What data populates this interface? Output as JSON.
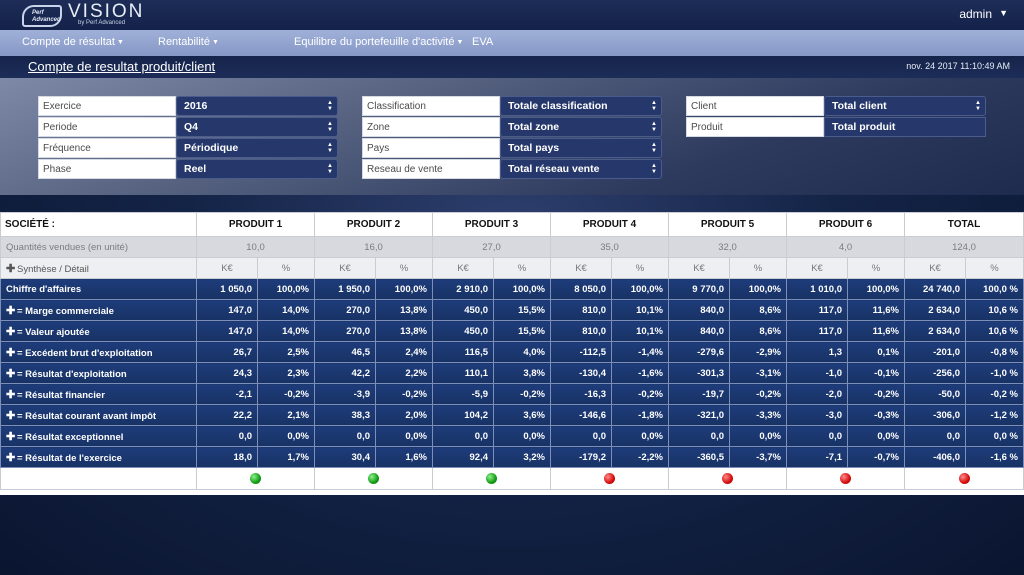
{
  "header": {
    "logo_badge_line1": "Perf",
    "logo_badge_line2": "Advanced",
    "app_name": "VISION",
    "app_sub": "by Perf Advanced",
    "user": "admin"
  },
  "nav": [
    {
      "label": "Compte de résultat",
      "dropdown": true
    },
    {
      "label": "Rentabilité",
      "dropdown": true
    },
    {
      "label": "Equilibre du portefeuille d'activité",
      "dropdown": true
    },
    {
      "label": "EVA",
      "dropdown": false
    }
  ],
  "page": {
    "title": "Compte de resultat produit/client",
    "timestamp": "nov. 24 2017 11:10:49 AM"
  },
  "filters": {
    "col1": [
      {
        "label": "Exercice",
        "value": "2016"
      },
      {
        "label": "Periode",
        "value": "Q4"
      },
      {
        "label": "Fréquence",
        "value": "Périodique"
      },
      {
        "label": "Phase",
        "value": "Reel"
      }
    ],
    "col2": [
      {
        "label": "Classification",
        "value": "Totale classification"
      },
      {
        "label": "Zone",
        "value": "Total zone"
      },
      {
        "label": "Pays",
        "value": "Total pays"
      },
      {
        "label": "Reseau de vente",
        "value": "Total réseau vente"
      }
    ],
    "col3": [
      {
        "label": "Client",
        "value": "Total client"
      },
      {
        "label": "Produit",
        "value": "Total produit"
      }
    ]
  },
  "table": {
    "corner_label": "SOCIÉTÉ :",
    "columns": [
      "PRODUIT 1",
      "PRODUIT 2",
      "PRODUIT 3",
      "PRODUIT 4",
      "PRODUIT 5",
      "PRODUIT 6",
      "TOTAL"
    ],
    "qty_label": "Quantités vendues (en unité)",
    "quantities": [
      "10,0",
      "16,0",
      "27,0",
      "35,0",
      "32,0",
      "4,0",
      "124,0"
    ],
    "units_label": "Synthèse / Détail",
    "unit_value": "K€",
    "unit_pct": "%",
    "rows": [
      {
        "label": "Chiffre d'affaires",
        "expand": false,
        "cells": [
          "1 050,0",
          "100,0%",
          "1 950,0",
          "100,0%",
          "2 910,0",
          "100,0%",
          "8 050,0",
          "100,0%",
          "9 770,0",
          "100,0%",
          "1 010,0",
          "100,0%",
          "24 740,0",
          "100,0 %"
        ]
      },
      {
        "label": "= Marge commerciale",
        "expand": true,
        "cells": [
          "147,0",
          "14,0%",
          "270,0",
          "13,8%",
          "450,0",
          "15,5%",
          "810,0",
          "10,1%",
          "840,0",
          "8,6%",
          "117,0",
          "11,6%",
          "2 634,0",
          "10,6 %"
        ]
      },
      {
        "label": "= Valeur ajoutée",
        "expand": true,
        "cells": [
          "147,0",
          "14,0%",
          "270,0",
          "13,8%",
          "450,0",
          "15,5%",
          "810,0",
          "10,1%",
          "840,0",
          "8,6%",
          "117,0",
          "11,6%",
          "2 634,0",
          "10,6 %"
        ]
      },
      {
        "label": "= Excédent brut d'exploitation",
        "expand": true,
        "cells": [
          "26,7",
          "2,5%",
          "46,5",
          "2,4%",
          "116,5",
          "4,0%",
          "-112,5",
          "-1,4%",
          "-279,6",
          "-2,9%",
          "1,3",
          "0,1%",
          "-201,0",
          "-0,8 %"
        ]
      },
      {
        "label": "= Résultat d'exploitation",
        "expand": true,
        "cells": [
          "24,3",
          "2,3%",
          "42,2",
          "2,2%",
          "110,1",
          "3,8%",
          "-130,4",
          "-1,6%",
          "-301,3",
          "-3,1%",
          "-1,0",
          "-0,1%",
          "-256,0",
          "-1,0 %"
        ]
      },
      {
        "label": "= Résultat financier",
        "expand": true,
        "cells": [
          "-2,1",
          "-0,2%",
          "-3,9",
          "-0,2%",
          "-5,9",
          "-0,2%",
          "-16,3",
          "-0,2%",
          "-19,7",
          "-0,2%",
          "-2,0",
          "-0,2%",
          "-50,0",
          "-0,2 %"
        ]
      },
      {
        "label": "= Résultat courant avant impôt",
        "expand": true,
        "cells": [
          "22,2",
          "2,1%",
          "38,3",
          "2,0%",
          "104,2",
          "3,6%",
          "-146,6",
          "-1,8%",
          "-321,0",
          "-3,3%",
          "-3,0",
          "-0,3%",
          "-306,0",
          "-1,2 %"
        ]
      },
      {
        "label": "= Résultat exceptionnel",
        "expand": true,
        "cells": [
          "0,0",
          "0,0%",
          "0,0",
          "0,0%",
          "0,0",
          "0,0%",
          "0,0",
          "0,0%",
          "0,0",
          "0,0%",
          "0,0",
          "0,0%",
          "0,0",
          "0,0 %"
        ]
      },
      {
        "label": "= Résultat de l'exercice",
        "expand": true,
        "cells": [
          "18,0",
          "1,7%",
          "30,4",
          "1,6%",
          "92,4",
          "3,2%",
          "-179,2",
          "-2,2%",
          "-360,5",
          "-3,7%",
          "-7,1",
          "-0,7%",
          "-406,0",
          "-1,6 %"
        ]
      }
    ],
    "status": [
      "green",
      "green",
      "green",
      "red",
      "red",
      "red",
      "red"
    ]
  },
  "colors": {
    "row_bg": "#1e3c7b",
    "nav_bg": "#9fb0d8",
    "status_green": "#139a13",
    "status_red": "#d50b0b"
  }
}
